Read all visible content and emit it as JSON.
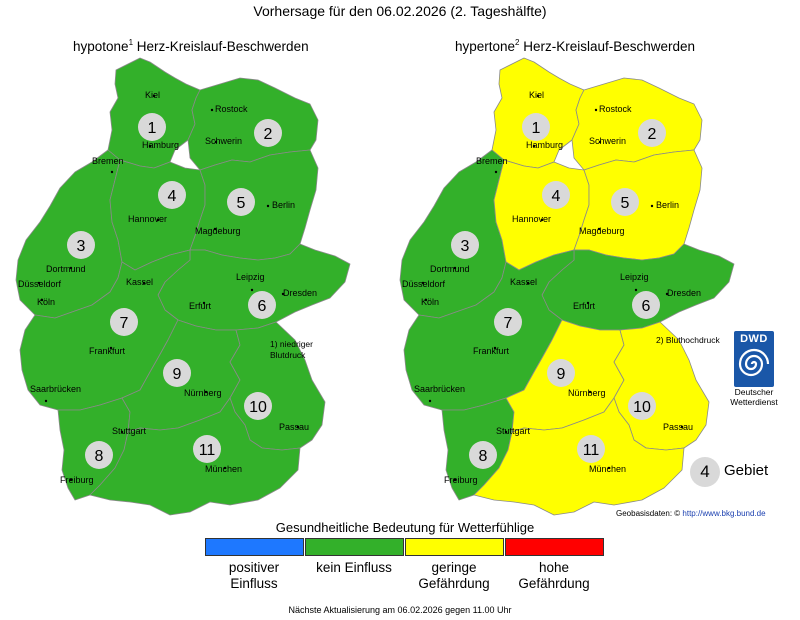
{
  "title": "Vorhersage für den 06.02.2026 (2. Tageshälfte)",
  "colors": {
    "positive": "#1e78ff",
    "none": "#33b02a",
    "low": "#ffff00",
    "high": "#ff0000",
    "region_circle": "#d9d9d9",
    "border": "#8a8a8a"
  },
  "maps": [
    {
      "title_prefix": "hypotone",
      "title_sup": "1",
      "title_suffix": " Herz-Kreislauf-Beschwerden",
      "note": "1) niedriger Blutdruck",
      "regions": [
        {
          "id": "1",
          "level": "kein Einfluss"
        },
        {
          "id": "2",
          "level": "kein Einfluss"
        },
        {
          "id": "3",
          "level": "kein Einfluss"
        },
        {
          "id": "4",
          "level": "kein Einfluss"
        },
        {
          "id": "5",
          "level": "kein Einfluss"
        },
        {
          "id": "6",
          "level": "kein Einfluss"
        },
        {
          "id": "7",
          "level": "kein Einfluss"
        },
        {
          "id": "8",
          "level": "kein Einfluss"
        },
        {
          "id": "9",
          "level": "kein Einfluss"
        },
        {
          "id": "10",
          "level": "kein Einfluss"
        },
        {
          "id": "11",
          "level": "kein Einfluss"
        }
      ]
    },
    {
      "title_prefix": "hypertone",
      "title_sup": "2",
      "title_suffix": " Herz-Kreislauf-Beschwerden",
      "note": "2) Bluthochdruck",
      "regions": [
        {
          "id": "1",
          "level": "geringe Gefährdung"
        },
        {
          "id": "2",
          "level": "geringe Gefährdung"
        },
        {
          "id": "3",
          "level": "kein Einfluss"
        },
        {
          "id": "4",
          "level": "geringe Gefährdung"
        },
        {
          "id": "5",
          "level": "geringe Gefährdung"
        },
        {
          "id": "6",
          "level": "kein Einfluss"
        },
        {
          "id": "7",
          "level": "kein Einfluss"
        },
        {
          "id": "8",
          "level": "kein Einfluss"
        },
        {
          "id": "9",
          "level": "geringe Gefährdung"
        },
        {
          "id": "10",
          "level": "geringe Gefährdung"
        },
        {
          "id": "11",
          "level": "geringe Gefährdung"
        }
      ]
    }
  ],
  "cities": [
    "Kiel",
    "Rostock",
    "Hamburg",
    "Schwerin",
    "Bremen",
    "Hannover",
    "Berlin",
    "Magdeburg",
    "Dortmund",
    "Düsseldorf",
    "Köln",
    "Kassel",
    "Leipzig",
    "Dresden",
    "Erfurt",
    "Frankfurt",
    "Saarbrücken",
    "Nürnberg",
    "Passau",
    "Stuttgart",
    "München",
    "Freiburg"
  ],
  "dwd": {
    "logo_text": "DWD",
    "name": "Deutscher Wetterdienst"
  },
  "key": {
    "number": "4",
    "label": "Gebiet"
  },
  "geobasis": {
    "label": "Geobasisdaten: © ",
    "link": "http://www.bkg.bund.de"
  },
  "legend": {
    "title": "Gesundheitliche Bedeutung für Wetterfühlige",
    "items": [
      {
        "label": "positiver Einfluss",
        "color": "#1e78ff"
      },
      {
        "label": "kein Einfluss",
        "color": "#33b02a"
      },
      {
        "label": "geringe Gefährdung",
        "color": "#ffff00"
      },
      {
        "label": "hohe Gefährdung",
        "color": "#ff0000"
      }
    ]
  },
  "footer": "Nächste Aktualisierung am 06.02.2026 gegen 11.00 Uhr"
}
